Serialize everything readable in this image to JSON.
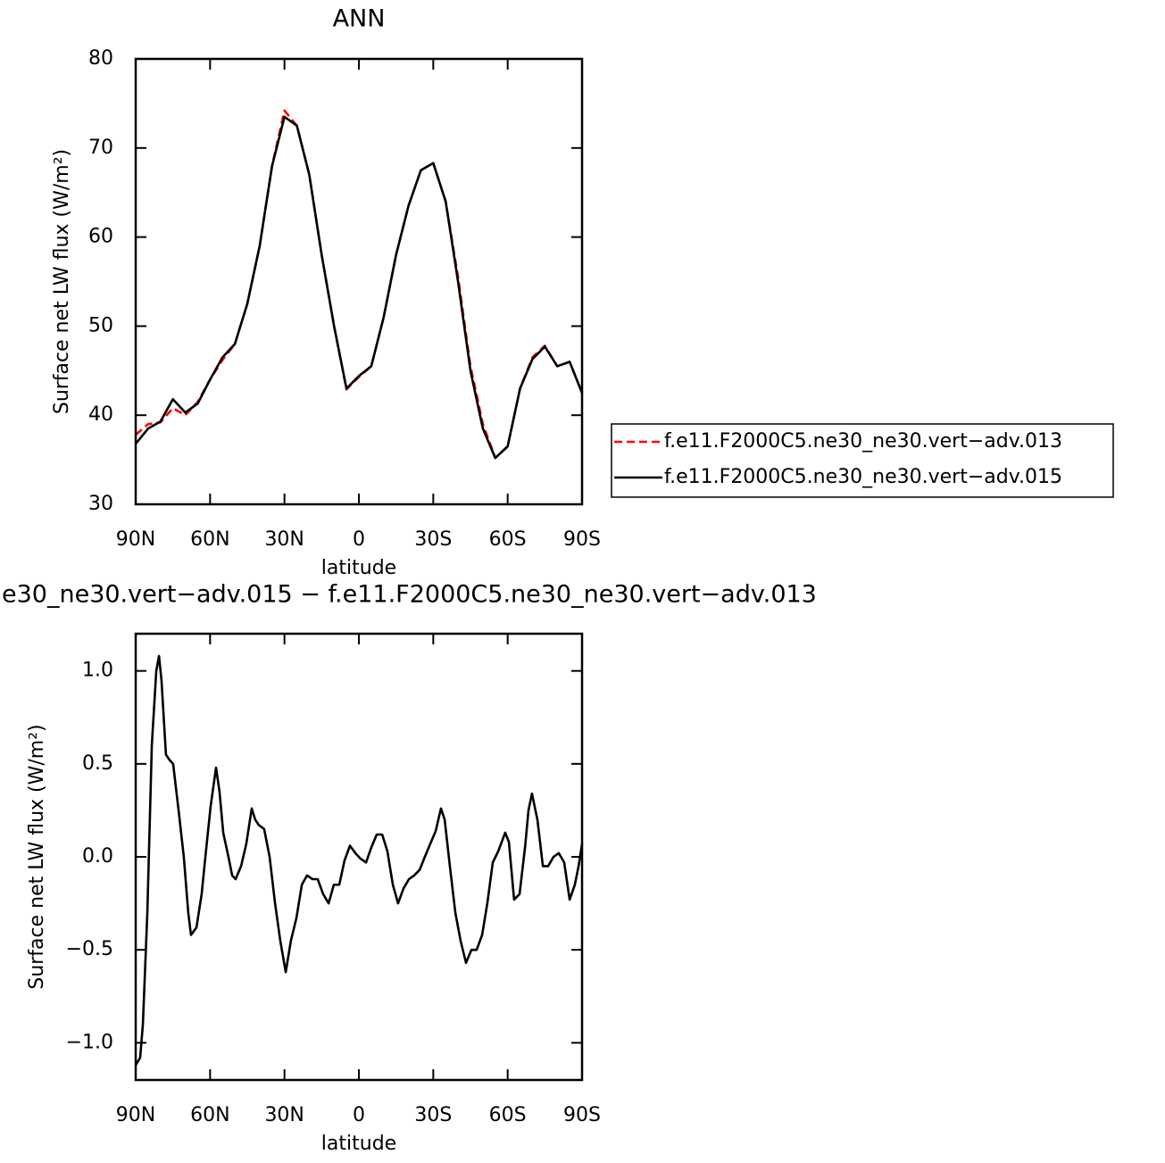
{
  "chart_data": [
    {
      "type": "line",
      "title": "ANN",
      "x_label": "latitude",
      "y_label": "Surface net LW flux (W/m²)",
      "x": [
        90,
        85,
        80,
        75,
        70,
        65,
        60,
        55,
        50,
        45,
        40,
        35,
        30,
        25,
        20,
        15,
        10,
        5,
        0,
        -5,
        -10,
        -15,
        -20,
        -25,
        -30,
        -35,
        -40,
        -45,
        -50,
        -55,
        -60,
        -65,
        -70,
        -75,
        -80,
        -85,
        -90
      ],
      "series": [
        {
          "name": "f.e11.F2000C5.ne30_ne30.vert−adv.013",
          "color": "#ff0000",
          "line_style": "dashed",
          "values": [
            37.8,
            39,
            39.2,
            40.8,
            40,
            41.5,
            44,
            46.2,
            48,
            52.5,
            59,
            68,
            74.2,
            72.5,
            67,
            58,
            50,
            42.9,
            44.3,
            45.5,
            51,
            58,
            63.5,
            67.5,
            68.3,
            64,
            55.5,
            45.5,
            39,
            35.2,
            36.5,
            43,
            46.5,
            47.8,
            45.5,
            46,
            42.5
          ]
        },
        {
          "name": "f.e11.F2000C5.ne30_ne30.vert−adv.015",
          "color": "#000000",
          "line_style": "solid",
          "values": [
            36.8,
            38.5,
            39.3,
            41.8,
            40.3,
            41.3,
            44,
            46.5,
            48,
            52.5,
            59,
            68,
            73.5,
            72.5,
            67,
            58,
            50,
            43,
            44.4,
            45.5,
            51,
            58,
            63.5,
            67.5,
            68.3,
            64,
            55,
            45,
            38.5,
            35.2,
            36.5,
            43,
            46.3,
            47.7,
            45.5,
            46,
            42.5
          ]
        }
      ],
      "xlim": [
        90,
        -90
      ],
      "xticks": [
        {
          "value": 90,
          "label": "90N"
        },
        {
          "value": 60,
          "label": "60N"
        },
        {
          "value": 30,
          "label": "30N"
        },
        0,
        {
          "value": -30,
          "label": "30S"
        },
        {
          "value": -60,
          "label": "60S"
        },
        {
          "value": -90,
          "label": "90S"
        }
      ],
      "ylim": [
        30,
        80
      ],
      "yticks": [
        30,
        40,
        50,
        60,
        70,
        80
      ],
      "legend": "right"
    },
    {
      "type": "line",
      "title": "e30_ne30.vert−adv.015 − f.e11.F2000C5.ne30_ne30.vert−adv.013",
      "x_label": "latitude",
      "y_label": "Surface net LW flux (W/m²)",
      "x": [
        90,
        88.2,
        87.1,
        85.3,
        83.5,
        81.7,
        80.6,
        79.6,
        77.8,
        76.3,
        74.9,
        72.7,
        70.6,
        68.8,
        67.7,
        65.5,
        63.4,
        61.9,
        59.8,
        57.6,
        56.2,
        54.7,
        52.6,
        51.1,
        49.7,
        47.5,
        45.4,
        43.2,
        41.8,
        40.3,
        38.2,
        36,
        33.8,
        31.7,
        29.5,
        27.4,
        25.2,
        23,
        20.9,
        18.7,
        16.6,
        14.4,
        12.2,
        10.1,
        7.9,
        5.8,
        3.6,
        1.4,
        -0.7,
        -2.9,
        -5,
        -7.2,
        -9.4,
        -11.5,
        -13.7,
        -15.8,
        -18,
        -20.2,
        -22.3,
        -24.5,
        -26.6,
        -28.8,
        -31,
        -33.1,
        -34.6,
        -36.7,
        -38.9,
        -41,
        -43.2,
        -45.4,
        -47.5,
        -49.7,
        -51.8,
        -54,
        -56.2,
        -59,
        -60.5,
        -62.6,
        -64.8,
        -67,
        -68.4,
        -69.8,
        -72,
        -74.2,
        -76.3,
        -78.5,
        -80.6,
        -82.8,
        -85,
        -87.1,
        -88.6,
        -90
      ],
      "values": [
        -1.12,
        -1.08,
        -0.9,
        -0.3,
        0.6,
        1.0,
        1.08,
        0.95,
        0.55,
        0.52,
        0.5,
        0.25,
        0.0,
        -0.3,
        -0.42,
        -0.38,
        -0.2,
        0.0,
        0.27,
        0.48,
        0.35,
        0.13,
        0.0,
        -0.1,
        -0.12,
        -0.05,
        0.07,
        0.26,
        0.2,
        0.17,
        0.15,
        0.0,
        -0.25,
        -0.45,
        -0.62,
        -0.45,
        -0.33,
        -0.15,
        -0.1,
        -0.12,
        -0.12,
        -0.2,
        -0.25,
        -0.15,
        -0.15,
        -0.02,
        0.06,
        0.02,
        -0.01,
        -0.03,
        0.05,
        0.12,
        0.12,
        0.03,
        -0.15,
        -0.25,
        -0.17,
        -0.12,
        -0.1,
        -0.07,
        0.0,
        0.07,
        0.14,
        0.26,
        0.2,
        -0.05,
        -0.3,
        -0.45,
        -0.57,
        -0.5,
        -0.5,
        -0.42,
        -0.25,
        -0.03,
        0.03,
        0.13,
        0.08,
        -0.23,
        -0.2,
        0.05,
        0.25,
        0.34,
        0.2,
        -0.05,
        -0.05,
        0.0,
        0.02,
        -0.03,
        -0.23,
        -0.15,
        -0.05,
        0.07
      ],
      "color": "#000000",
      "xlim": [
        90,
        -90
      ],
      "xticks": [
        {
          "value": 90,
          "label": "90N"
        },
        {
          "value": 60,
          "label": "60N"
        },
        {
          "value": 30,
          "label": "30N"
        },
        0,
        {
          "value": -30,
          "label": "30S"
        },
        {
          "value": -60,
          "label": "60S"
        },
        {
          "value": -90,
          "label": "90S"
        }
      ],
      "ylim": [
        -1.2,
        1.2
      ],
      "yticks": [
        {
          "value": -1,
          "label": "−1.0"
        },
        {
          "value": -0.5,
          "label": "−0.5"
        },
        {
          "value": 0,
          "label": "0.0"
        },
        0.5,
        {
          "value": 1,
          "label": "1.0"
        }
      ]
    }
  ]
}
